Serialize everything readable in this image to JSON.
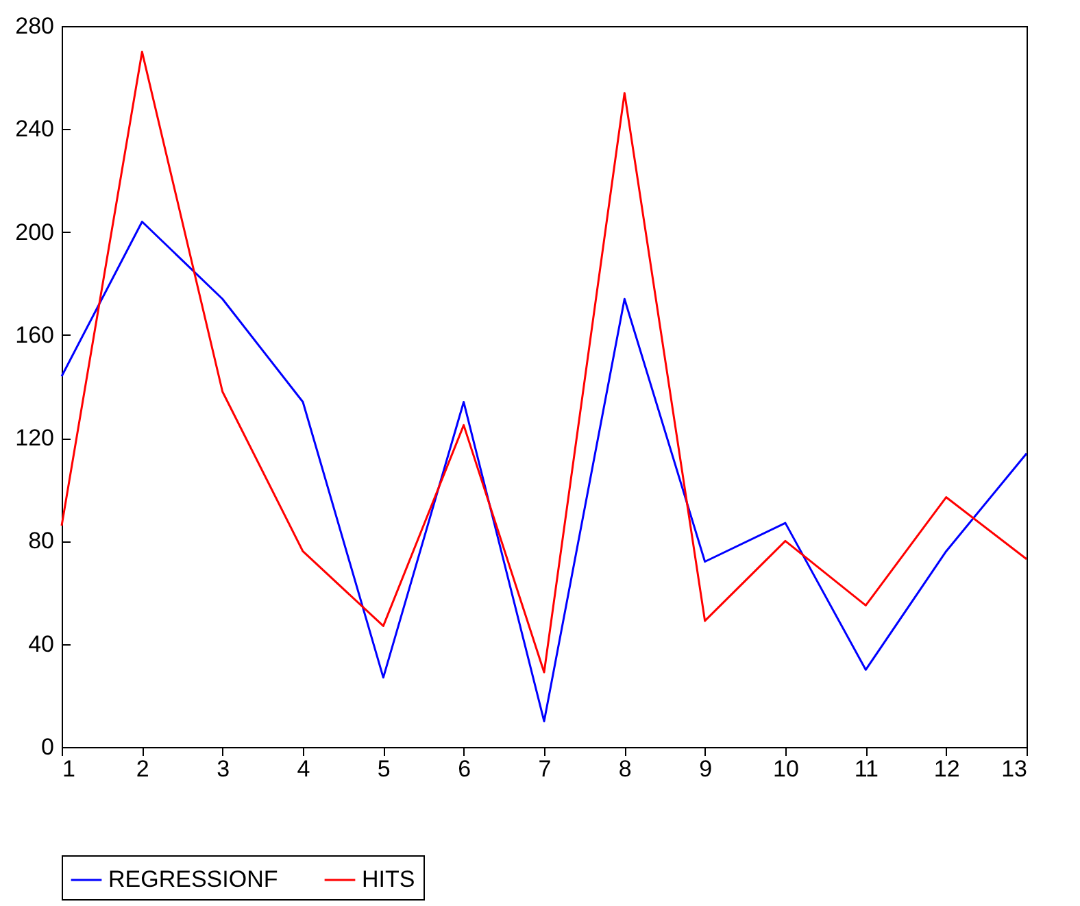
{
  "chart_data": {
    "type": "line",
    "x": [
      1,
      2,
      3,
      4,
      5,
      6,
      7,
      8,
      9,
      10,
      11,
      12,
      13
    ],
    "series": [
      {
        "name": "REGRESSIONF",
        "color": "#0000ff",
        "values": [
          144,
          204,
          174,
          134,
          27,
          134,
          10,
          174,
          72,
          87,
          30,
          76,
          114
        ]
      },
      {
        "name": "HITS",
        "color": "#ff0000",
        "values": [
          86,
          270,
          138,
          76,
          47,
          125,
          29,
          254,
          49,
          80,
          55,
          97,
          73
        ]
      }
    ],
    "xlim": [
      1,
      13
    ],
    "xticks": [
      1,
      2,
      3,
      4,
      5,
      6,
      7,
      8,
      9,
      10,
      11,
      12,
      13
    ],
    "ylim": [
      0,
      280
    ],
    "yticks": [
      0,
      40,
      80,
      120,
      160,
      200,
      240,
      280
    ],
    "grid": false,
    "legend": "bottom",
    "marker": "none",
    "line_style": "solid"
  }
}
